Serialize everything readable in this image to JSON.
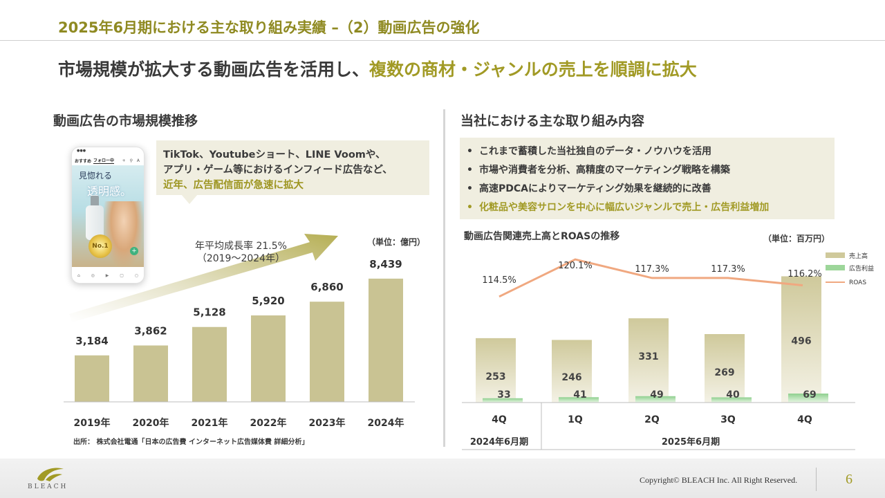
{
  "header": {
    "title": "2025年6月期における主な取り組み実績 –（2）動画広告の強化",
    "headline_plain": "市場規模が拡大する動画広告を活用し、",
    "headline_highlight": "複数の商材・ジャンルの売上を順調に拡大"
  },
  "left": {
    "section_title": "動画広告の市場規模推移",
    "phone": {
      "nav_recommend": "おすすめ",
      "nav_follow": "フォロー中",
      "video_text_1": "見惚れる",
      "video_text_2": "透明感。",
      "badge": "No.1"
    },
    "callout": {
      "line1": "TikTok、Youtubeショート、LINE Voomや、",
      "line2": "アプリ・ゲーム等におけるインフィード広告など、",
      "line3": "近年、広告配信面が急速に拡大"
    },
    "cagr_line1": "年平均成長率 21.5%",
    "cagr_line2": "（2019～2024年）",
    "unit": "（単位：億円）",
    "source": "出所： 株式会社電通「日本の広告費 インターネット広告媒体費 詳細分析」"
  },
  "right": {
    "section_title": "当社における主な取り組み内容",
    "bullets": [
      "これまで蓄積した当社独自のデータ・ノウハウを活用",
      "市場や消費者を分析、高精度のマーケティング戦略を構築",
      "高速PDCAによりマーケティング効果を継続的に改善",
      "化粧品や美容サロンを中心に幅広いジャンルで売上・広告利益増加"
    ],
    "bullet_mark": "•",
    "chart_title": "動画広告関連売上高とROASの推移",
    "unit": "（単位：百万円）",
    "period_2024": "2024年6月期",
    "period_2025": "2025年6月期"
  },
  "footer": {
    "logo_text": "BLEACH",
    "copyright": "Copyright© BLEACH Inc. All Right Reserved.",
    "page_number": "6"
  },
  "colors": {
    "accent": "#a19a25",
    "bar": "#c9c393",
    "profit_bar": "#8fd08f",
    "roas_line": "#f0a880",
    "callout_bg": "#f0eee0"
  },
  "chart_data": [
    {
      "type": "bar",
      "categories": [
        "2019年",
        "2020年",
        "2021年",
        "2022年",
        "2023年",
        "2024年"
      ],
      "values": [
        3184,
        3862,
        5128,
        5920,
        6860,
        8439
      ],
      "value_labels": [
        "3,184",
        "3,862",
        "5,128",
        "5,920",
        "6,860",
        "8,439"
      ],
      "title": "動画広告の市場規模推移",
      "ylim": [
        0,
        9000
      ]
    },
    {
      "type": "bar",
      "categories": [
        "4Q",
        "1Q",
        "2Q",
        "3Q",
        "4Q"
      ],
      "series": [
        {
          "name": "売上高",
          "values": [
            253,
            246,
            331,
            269,
            496
          ]
        },
        {
          "name": "広告利益",
          "values": [
            33,
            41,
            49,
            40,
            69
          ]
        },
        {
          "name": "ROAS",
          "values": [
            114.5,
            120.1,
            117.3,
            117.3,
            116.2
          ],
          "labels": [
            "114.5%",
            "120.1%",
            "117.3%",
            "117.3%",
            "116.2%"
          ]
        }
      ],
      "title": "動画広告関連売上高とROASの推移",
      "ylim": [
        0,
        520
      ],
      "legend": "top-right"
    }
  ]
}
